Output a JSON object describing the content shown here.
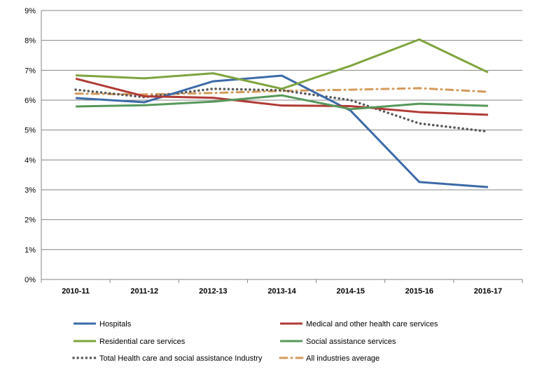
{
  "chart_data": {
    "type": "line",
    "title": "",
    "xlabel": "",
    "ylabel": "",
    "ylim": [
      0,
      9
    ],
    "y_tick_format": "percent",
    "y_ticks": [
      "0%",
      "1%",
      "2%",
      "3%",
      "4%",
      "5%",
      "6%",
      "7%",
      "8%",
      "9%"
    ],
    "grid": "horizontal",
    "legend_position": "bottom",
    "categories": [
      "2010-11",
      "2011-12",
      "2012-13",
      "2013-14",
      "2014-15",
      "2015-16",
      "2016-17"
    ],
    "series": [
      {
        "name": "Hospitals",
        "color": "#3c6aa8",
        "style": "solid",
        "values": [
          6.07,
          5.93,
          6.63,
          6.82,
          5.65,
          3.26,
          3.09
        ]
      },
      {
        "name": "Medical and other health care services",
        "color": "#b03a35",
        "style": "solid",
        "values": [
          6.72,
          6.13,
          6.08,
          5.82,
          5.8,
          5.6,
          5.51
        ]
      },
      {
        "name": "Residential care services",
        "color": "#7ea43f",
        "style": "solid",
        "values": [
          6.83,
          6.73,
          6.9,
          6.38,
          7.15,
          8.03,
          6.93
        ]
      },
      {
        "name": "Social assistance services",
        "color": "#56985a",
        "style": "solid",
        "values": [
          5.79,
          5.83,
          5.95,
          6.16,
          5.7,
          5.88,
          5.81
        ]
      },
      {
        "name": "Total Health care and social assistance Industry",
        "color": "#595959",
        "style": "dotted",
        "values": [
          6.35,
          6.1,
          6.38,
          6.33,
          6.0,
          5.22,
          4.95
        ]
      },
      {
        "name": "All industries average",
        "color": "#d49a5a",
        "style": "dashdot",
        "values": [
          6.22,
          6.19,
          6.24,
          6.31,
          6.35,
          6.4,
          6.28
        ]
      }
    ]
  }
}
